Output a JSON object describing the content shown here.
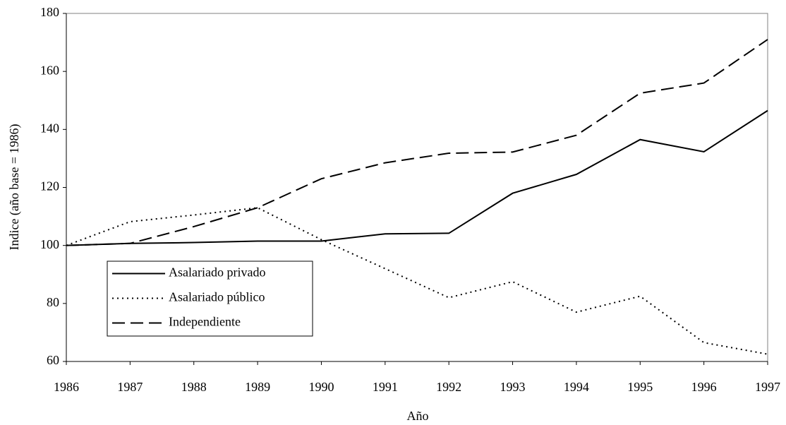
{
  "chart_data": {
    "type": "line",
    "x_label": "Año",
    "y_label": "Indice (año base = 1986)",
    "x": [
      1986,
      1987,
      1988,
      1989,
      1990,
      1991,
      1992,
      1993,
      1994,
      1995,
      1996,
      1997
    ],
    "series": [
      {
        "name": "Asalariado privado",
        "color": "#000000",
        "dash": "solid",
        "values": [
          100,
          100.7,
          101,
          101.5,
          101.5,
          104,
          104.2,
          118,
          124.5,
          136.5,
          132.3,
          146.5
        ]
      },
      {
        "name": "Asalariado público",
        "color": "#000000",
        "dash": "dotted",
        "values": [
          100,
          108.2,
          110.5,
          113,
          102,
          92,
          82,
          87.5,
          77,
          82.5,
          66.5,
          62.5
        ]
      },
      {
        "name": "Independiente",
        "color": "#000000",
        "dash": "dashed",
        "values": [
          100,
          100.7,
          106.5,
          113,
          123,
          128.5,
          131.8,
          132.2,
          138,
          152.5,
          156,
          171
        ]
      }
    ],
    "xlim": [
      1986,
      1997
    ],
    "xticks": [
      1986,
      1987,
      1988,
      1989,
      1990,
      1991,
      1992,
      1993,
      1994,
      1995,
      1996,
      1997
    ],
    "ylim": [
      60,
      180
    ],
    "yticks": [
      60,
      80,
      100,
      120,
      140,
      160,
      180
    ],
    "grid": false,
    "legend": "lower-left"
  }
}
